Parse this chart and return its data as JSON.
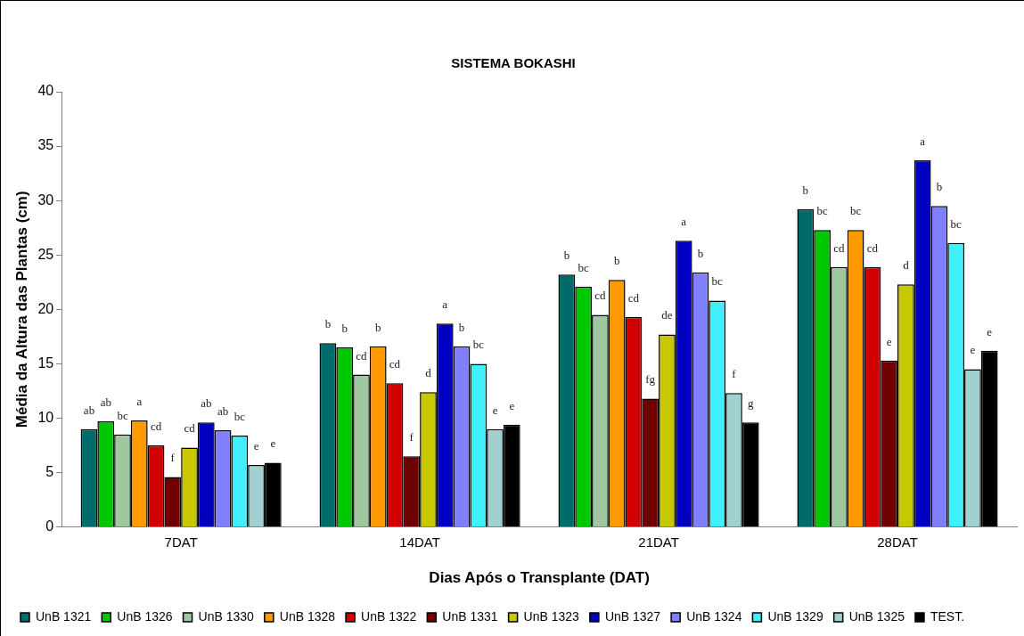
{
  "chart_data": {
    "type": "bar",
    "title": "SISTEMA BOKASHI",
    "xlabel": "Dias Após o Transplante (DAT)",
    "ylabel": "Média da Altura das Plantas (cm)",
    "categories": [
      "7DAT",
      "14DAT",
      "21DAT",
      "28DAT"
    ],
    "ylim": [
      0,
      40
    ],
    "yticks": [
      0,
      5,
      10,
      15,
      20,
      25,
      30,
      35,
      40
    ],
    "grid": false,
    "legend": "bottom",
    "series": [
      {
        "name": "UnB 1321",
        "color": "#006b6b",
        "values": [
          9.0,
          16.9,
          23.2,
          29.2
        ],
        "value_labels": [
          "ab",
          "b",
          "b",
          "b"
        ]
      },
      {
        "name": "UnB 1326",
        "color": "#00c800",
        "values": [
          9.7,
          16.5,
          22.1,
          27.3
        ],
        "value_labels": [
          "ab",
          "b",
          "bc",
          "bc"
        ]
      },
      {
        "name": "UnB 1330",
        "color": "#a0c8a0",
        "values": [
          8.5,
          14.0,
          19.5,
          23.9
        ],
        "value_labels": [
          "bc",
          "cd",
          "cd",
          "cd"
        ]
      },
      {
        "name": "UnB 1328",
        "color": "#ff9900",
        "values": [
          9.8,
          16.6,
          22.7,
          27.3
        ],
        "value_labels": [
          "a",
          "b",
          "b",
          "bc"
        ]
      },
      {
        "name": "UnB 1322",
        "color": "#d00000",
        "values": [
          7.5,
          13.2,
          19.3,
          23.9
        ],
        "value_labels": [
          "cd",
          "cd",
          "cd",
          "cd"
        ]
      },
      {
        "name": "UnB 1331",
        "color": "#700000",
        "values": [
          4.6,
          6.5,
          11.8,
          15.3
        ],
        "value_labels": [
          "f",
          "f",
          "fg",
          "e"
        ]
      },
      {
        "name": "UnB 1323",
        "color": "#c8c800",
        "values": [
          7.3,
          12.4,
          17.7,
          22.3
        ],
        "value_labels": [
          "cd",
          "d",
          "de",
          "d"
        ]
      },
      {
        "name": "UnB 1327",
        "color": "#0000c0",
        "values": [
          9.6,
          18.7,
          26.3,
          33.7
        ],
        "value_labels": [
          "ab",
          "a",
          "a",
          "a"
        ]
      },
      {
        "name": "UnB 1324",
        "color": "#8080ff",
        "values": [
          8.9,
          16.6,
          23.4,
          29.5
        ],
        "value_labels": [
          "ab",
          "b",
          "b",
          "b"
        ]
      },
      {
        "name": "UnB 1329",
        "color": "#40f0ff",
        "values": [
          8.4,
          15.0,
          20.8,
          26.1
        ],
        "value_labels": [
          "bc",
          "bc",
          "bc",
          "bc"
        ]
      },
      {
        "name": "UnB 1325",
        "color": "#a0d0d0",
        "values": [
          5.7,
          9.0,
          12.3,
          14.5
        ],
        "value_labels": [
          "e",
          "e",
          "f",
          "e"
        ]
      },
      {
        "name": "TEST.",
        "color": "#000000",
        "values": [
          5.9,
          9.4,
          9.6,
          16.2
        ],
        "value_labels": [
          "e",
          "e",
          "g",
          "e"
        ]
      }
    ]
  }
}
